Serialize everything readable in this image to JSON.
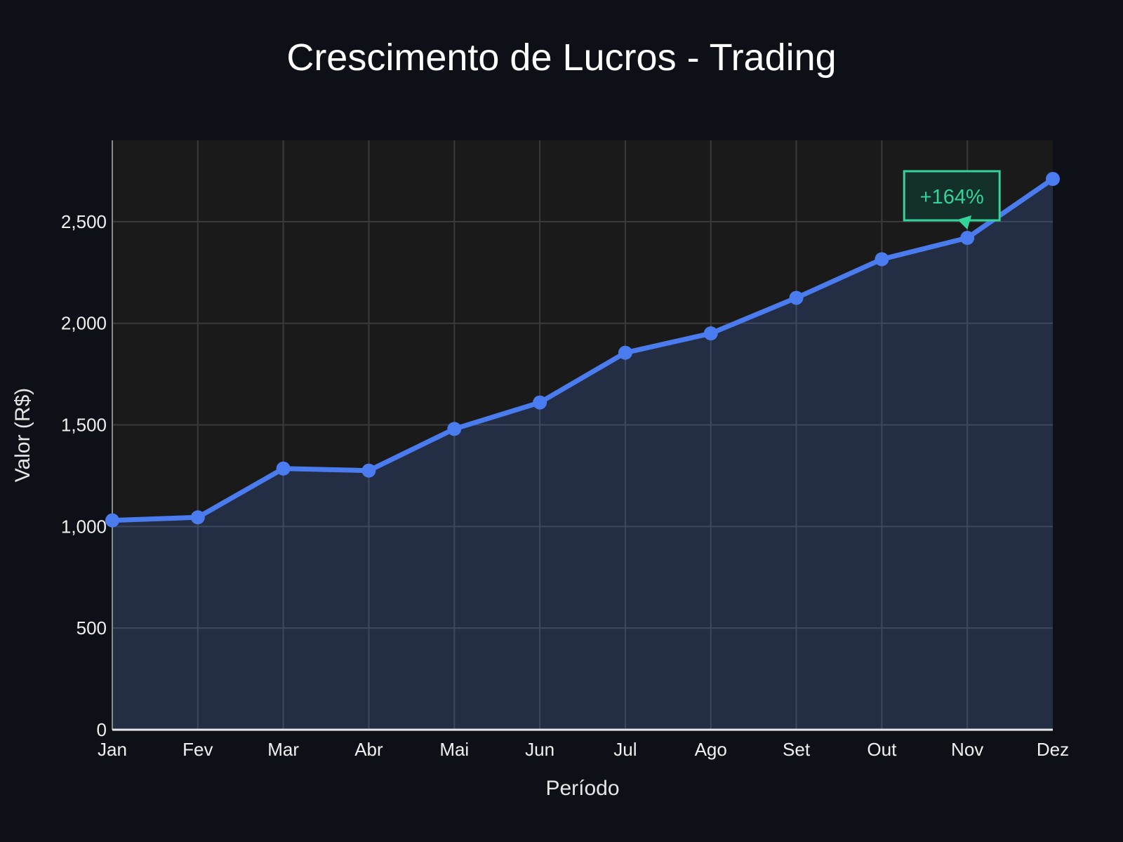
{
  "chart_data": {
    "type": "area",
    "title": "Crescimento de Lucros - Trading",
    "xlabel": "Período",
    "ylabel": "Valor (R$)",
    "categories": [
      "Jan",
      "Fev",
      "Mar",
      "Abr",
      "Mai",
      "Jun",
      "Jul",
      "Ago",
      "Set",
      "Out",
      "Nov",
      "Dez"
    ],
    "series": [
      {
        "values": [
          1030,
          1045,
          1285,
          1275,
          1480,
          1610,
          1855,
          1950,
          2125,
          2315,
          2420,
          2710
        ]
      }
    ],
    "ylim": [
      0,
      2900
    ],
    "yticks": [
      0,
      500,
      1000,
      1500,
      2000,
      2500
    ],
    "ytick_labels": [
      "0",
      "500",
      "1,000",
      "1,500",
      "2,000",
      "2,500"
    ],
    "grid": true,
    "annotation": {
      "text": "+164%",
      "category": "Nov"
    },
    "colors": {
      "background": "#0d1117",
      "plot_background": "#1a1a1a",
      "line": "#4a7cf0",
      "fill": "#263254",
      "grid": "#3a3a3a",
      "annotation": "#34d399",
      "annotation_background": "#13302a"
    }
  }
}
